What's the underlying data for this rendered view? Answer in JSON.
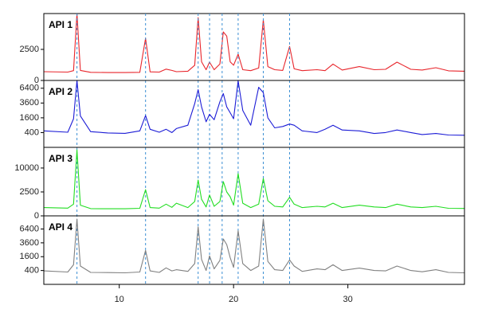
{
  "chart_data": [
    {
      "type": "line",
      "title": "API 1",
      "color": "#e8252b",
      "yscale": "sqrt",
      "vlines": [
        6.3,
        12.3,
        16.9,
        17.9,
        19.0,
        20.4,
        22.6,
        24.9
      ],
      "x": [
        3.4,
        5.5,
        6.0,
        6.3,
        6.6,
        7.5,
        9,
        10.5,
        11.8,
        12.3,
        12.7,
        13.5,
        14.1,
        14.6,
        15.0,
        16.0,
        16.6,
        16.9,
        17.2,
        17.6,
        17.9,
        18.3,
        18.8,
        19.1,
        19.4,
        19.7,
        20.0,
        20.4,
        20.8,
        21.5,
        22.2,
        22.6,
        23.0,
        23.6,
        24.3,
        24.9,
        25.3,
        26.0,
        27.3,
        28.0,
        28.7,
        29.5,
        31.0,
        32.3,
        33.3,
        34.3,
        35.5,
        36.5,
        37.7,
        38.8,
        40.2
      ],
      "values": [
        200,
        180,
        250,
        11600,
        260,
        170,
        160,
        160,
        170,
        4600,
        190,
        180,
        330,
        260,
        200,
        220,
        600,
        10200,
        900,
        300,
        870,
        300,
        700,
        6100,
        5100,
        900,
        600,
        1800,
        300,
        250,
        400,
        9500,
        500,
        300,
        260,
        3000,
        350,
        250,
        300,
        250,
        700,
        280,
        500,
        300,
        320,
        870,
        320,
        280,
        420,
        240,
        220
      ],
      "xlim": [
        3.4,
        40.2
      ],
      "ylim": [
        0,
        11600
      ],
      "yticks": [
        0,
        2500
      ]
    },
    {
      "type": "line",
      "title": "API 2",
      "color": "#1c1cd6",
      "yscale": "sqrt",
      "x": [
        3.4,
        5.5,
        6.0,
        6.3,
        6.6,
        7.5,
        9,
        10.5,
        11.8,
        12.3,
        12.7,
        13.5,
        14.1,
        14.6,
        15.0,
        16.0,
        16.6,
        16.9,
        17.2,
        17.6,
        17.9,
        18.3,
        18.8,
        19.1,
        19.4,
        19.7,
        20.0,
        20.4,
        20.8,
        21.5,
        22.2,
        22.6,
        23.0,
        23.6,
        24.3,
        24.9,
        25.3,
        26.0,
        27.3,
        28.0,
        28.7,
        29.5,
        31.0,
        32.3,
        33.3,
        34.3,
        35.5,
        36.5,
        37.7,
        38.8,
        40.2
      ],
      "values": [
        500,
        420,
        1500,
        8200,
        1800,
        450,
        380,
        360,
        500,
        1850,
        600,
        420,
        600,
        400,
        650,
        900,
        3500,
        6100,
        3000,
        1200,
        2000,
        1400,
        3800,
        5300,
        3000,
        2200,
        1500,
        8100,
        2500,
        900,
        6600,
        5500,
        1600,
        700,
        800,
        1000,
        900,
        500,
        400,
        600,
        900,
        550,
        500,
        350,
        400,
        550,
        400,
        300,
        350,
        280,
        270
      ],
      "xlim": [
        3.4,
        40.2
      ],
      "ylim": [
        0,
        8200
      ],
      "yticks": [
        400,
        1600,
        3600,
        6400
      ]
    },
    {
      "type": "line",
      "title": "API 3",
      "color": "#22dd22",
      "yscale": "sqrt",
      "x": [
        3.4,
        5.5,
        6.0,
        6.3,
        6.6,
        7.5,
        9,
        10.5,
        11.8,
        12.3,
        12.7,
        13.5,
        14.1,
        14.6,
        15.0,
        16.0,
        16.6,
        16.9,
        17.2,
        17.6,
        17.9,
        18.3,
        18.8,
        19.1,
        19.4,
        19.7,
        20.0,
        20.4,
        20.8,
        21.5,
        22.2,
        22.6,
        23.0,
        23.6,
        24.3,
        24.9,
        25.3,
        26.0,
        27.3,
        28.0,
        28.7,
        29.5,
        31.0,
        32.3,
        33.3,
        34.3,
        35.5,
        36.5,
        37.7,
        38.8,
        40.2
      ],
      "values": [
        300,
        260,
        600,
        19000,
        500,
        230,
        220,
        220,
        250,
        3000,
        300,
        260,
        600,
        320,
        700,
        300,
        900,
        5600,
        1200,
        350,
        1900,
        400,
        900,
        5100,
        2500,
        1600,
        500,
        7800,
        700,
        300,
        600,
        6100,
        1000,
        400,
        350,
        1500,
        600,
        300,
        400,
        350,
        700,
        300,
        500,
        350,
        300,
        600,
        350,
        300,
        400,
        250,
        240
      ],
      "xlim": [
        3.4,
        40.2
      ],
      "ylim": [
        0,
        20500
      ],
      "yticks": [
        0,
        2500,
        10000
      ]
    },
    {
      "type": "line",
      "title": "API 4",
      "color": "#808080",
      "yscale": "sqrt",
      "x": [
        3.4,
        5.5,
        6.0,
        6.3,
        6.6,
        7.5,
        9,
        10.5,
        11.8,
        12.3,
        12.7,
        13.5,
        14.1,
        14.6,
        15.0,
        16.0,
        16.6,
        16.9,
        17.2,
        17.6,
        17.9,
        18.3,
        18.8,
        19.1,
        19.4,
        19.7,
        20.0,
        20.4,
        20.8,
        21.5,
        22.2,
        22.6,
        23.0,
        23.6,
        24.3,
        24.9,
        25.3,
        26.0,
        27.3,
        28.0,
        28.7,
        29.5,
        31.0,
        32.3,
        33.3,
        34.3,
        35.5,
        36.5,
        37.7,
        38.8,
        40.2
      ],
      "values": [
        380,
        320,
        800,
        8900,
        700,
        300,
        290,
        280,
        320,
        2400,
        380,
        300,
        570,
        380,
        450,
        350,
        900,
        6900,
        1300,
        400,
        1700,
        500,
        1200,
        4300,
        3300,
        1500,
        600,
        6000,
        900,
        400,
        700,
        8900,
        1100,
        450,
        400,
        1250,
        700,
        350,
        500,
        450,
        800,
        400,
        550,
        400,
        380,
        700,
        400,
        330,
        450,
        300,
        280
      ],
      "xlim": [
        3.4,
        40.2
      ],
      "ylim": [
        0,
        9800
      ],
      "yticks": [
        400,
        1600,
        3600,
        6400
      ],
      "xticks": [
        10,
        20,
        30
      ]
    }
  ]
}
